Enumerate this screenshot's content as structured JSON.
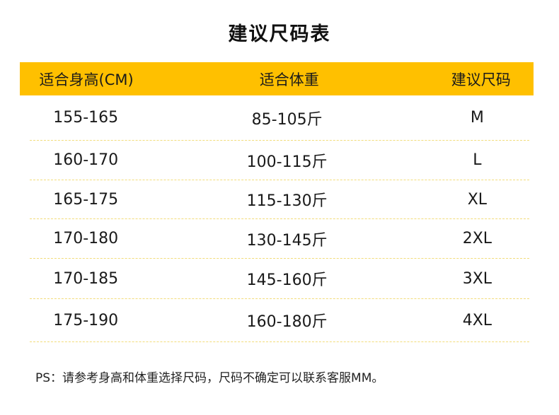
{
  "title": "建议尺码表",
  "table": {
    "headers": [
      "适合身高(CM)",
      "适合体重",
      "建议尺码"
    ],
    "rows": [
      [
        "155-165",
        "85-105斤",
        "M"
      ],
      [
        "160-170",
        "100-115斤",
        "L"
      ],
      [
        "165-175",
        "115-130斤",
        "XL"
      ],
      [
        "170-180",
        "130-145斤",
        "2XL"
      ],
      [
        "170-185",
        "145-160斤",
        "3XL"
      ],
      [
        "175-190",
        "160-180斤",
        "4XL"
      ]
    ]
  },
  "note": "PS：请参考身高和体重选择尺码，尺码不确定可以联系客服MM。",
  "colors": {
    "header_bg": "#ffc000",
    "divider": "#f2dc7a",
    "text": "#1a1a1a"
  }
}
